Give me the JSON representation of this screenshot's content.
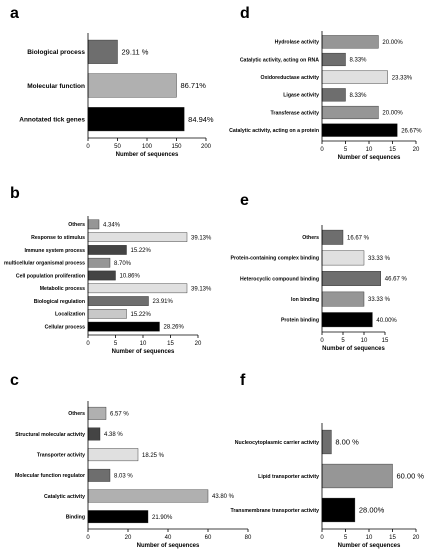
{
  "chart_data": [
    {
      "panel": "a",
      "type": "bar",
      "orientation": "horizontal",
      "categories": [
        "Biological process",
        "Molecular function",
        "Annotated tick genes"
      ],
      "values": [
        50,
        150,
        163
      ],
      "labels": [
        "29.11 %",
        "86.71%",
        "84.94%"
      ],
      "colors": [
        "#6e6e6e",
        "#b0b0b0",
        "#000000"
      ],
      "xlabel": "Number of sequences",
      "xlim": [
        0,
        200
      ],
      "xticks": [
        "0",
        "50",
        "100",
        "150",
        "200"
      ]
    },
    {
      "panel": "b",
      "type": "bar",
      "orientation": "horizontal",
      "categories": [
        "Others",
        "Response to stimulus",
        "Immune system process",
        "multicellular organismal process",
        "Cell population proliferation",
        "Metabolic process",
        "Biological regulation",
        "Localization",
        "Cellular process"
      ],
      "values": [
        2,
        18,
        7,
        4,
        5,
        18,
        11,
        7,
        13
      ],
      "labels": [
        "4.34%",
        "39.13%",
        "15.22%",
        "8.70%",
        "10.86%",
        "39.13%",
        "23.91%",
        "15.22%",
        "28.26%"
      ],
      "colors": [
        "#969696",
        "#e0e0e0",
        "#444444",
        "#969696",
        "#444444",
        "#e0e0e0",
        "#6e6e6e",
        "#c8c8c8",
        "#000000"
      ],
      "xlabel": "Number of sequences",
      "xlim": [
        0,
        20
      ],
      "xticks": [
        "0",
        "5",
        "10",
        "15",
        "20"
      ]
    },
    {
      "panel": "c",
      "type": "bar",
      "orientation": "horizontal",
      "categories": [
        "Others",
        "Structural molecular activity",
        "Transporter activity",
        "Molecular function regulator",
        "Catalytic activity",
        "Binding"
      ],
      "values": [
        9,
        6,
        25,
        11,
        60,
        30
      ],
      "labels": [
        "6.57 %",
        "4.38 %",
        "18.25 %",
        "8.03 %",
        "43.80 %",
        "21.90%"
      ],
      "colors": [
        "#b0b0b0",
        "#444444",
        "#e0e0e0",
        "#6e6e6e",
        "#b0b0b0",
        "#000000"
      ],
      "xlabel": "Number of sequences",
      "xlim": [
        0,
        80
      ],
      "xticks": [
        "0",
        "20",
        "40",
        "60",
        "80"
      ]
    },
    {
      "panel": "d",
      "type": "bar",
      "orientation": "horizontal",
      "categories": [
        "Hydrolase activity",
        "Catalytic activity, acting on RNA",
        "Oxidoreductase activity",
        "Ligase activity",
        "Transferase activity",
        "Catalytic activity, acting on a protein"
      ],
      "values": [
        12,
        5,
        14,
        5,
        12,
        16
      ],
      "labels": [
        "20.00%",
        "8.33%",
        "23.33%",
        "8.33%",
        "20.00%",
        "26.67%"
      ],
      "colors": [
        "#969696",
        "#6e6e6e",
        "#e0e0e0",
        "#6e6e6e",
        "#969696",
        "#000000"
      ],
      "xlabel": "Number of sequences",
      "xlim": [
        0,
        20
      ],
      "xticks": [
        "0",
        "5",
        "10",
        "15",
        "20"
      ]
    },
    {
      "panel": "e",
      "type": "bar",
      "orientation": "horizontal",
      "categories": [
        "Others",
        "Protein-containing complex binding",
        "Heterocyclic compound binding",
        "Ion binding",
        "Protein binding"
      ],
      "values": [
        5,
        10,
        14,
        10,
        12
      ],
      "labels": [
        "16.67 %",
        "33.33 %",
        "46.67 %",
        "33.33 %",
        "40.00%"
      ],
      "colors": [
        "#6e6e6e",
        "#e0e0e0",
        "#6e6e6e",
        "#969696",
        "#000000"
      ],
      "xlabel": "Number of sequences",
      "xlim": [
        0,
        15
      ],
      "xticks": [
        "0",
        "5",
        "10",
        "15"
      ]
    },
    {
      "panel": "f",
      "type": "bar",
      "orientation": "horizontal",
      "categories": [
        "Nucleocytoplasmic carrier activity",
        "Lipid transporter activity",
        "Transmembrane transporter activity"
      ],
      "values": [
        2,
        15,
        7
      ],
      "labels": [
        "8.00 %",
        "60.00 %",
        "28.00%"
      ],
      "colors": [
        "#6e6e6e",
        "#969696",
        "#000000"
      ],
      "xlabel": "Number of sequences",
      "xlim": [
        0,
        20
      ],
      "xticks": [
        "0",
        "5",
        "10",
        "15",
        "20"
      ]
    }
  ]
}
